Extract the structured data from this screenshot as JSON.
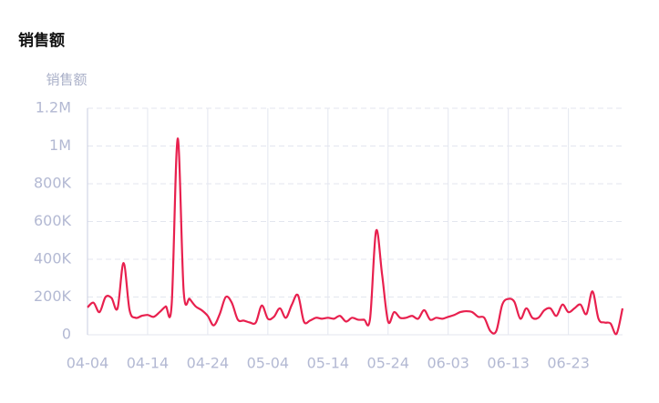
{
  "chart_data": {
    "type": "line",
    "title": "销售额",
    "y_label": "销售额",
    "categories": [
      "04-04",
      null,
      null,
      null,
      null,
      null,
      null,
      null,
      null,
      null,
      "04-14",
      null,
      null,
      null,
      null,
      null,
      null,
      null,
      null,
      null,
      "04-24",
      null,
      null,
      null,
      null,
      null,
      null,
      null,
      null,
      null,
      "05-04",
      null,
      null,
      null,
      null,
      null,
      null,
      null,
      null,
      null,
      "05-14",
      null,
      null,
      null,
      null,
      null,
      null,
      null,
      null,
      null,
      "05-24",
      null,
      null,
      null,
      null,
      null,
      null,
      null,
      null,
      null,
      "06-03",
      null,
      null,
      null,
      null,
      null,
      null,
      null,
      null,
      null,
      "06-13",
      null,
      null,
      null,
      null,
      null,
      null,
      null,
      null,
      null,
      "06-23",
      null,
      null,
      null,
      null,
      null,
      null,
      null,
      null,
      null
    ],
    "series": [
      {
        "name": "销售额",
        "color": "#e8204e",
        "values": [
          145000,
          170000,
          120000,
          200000,
          195000,
          140000,
          380000,
          130000,
          90000,
          100000,
          105000,
          95000,
          120000,
          150000,
          160000,
          1040000,
          230000,
          190000,
          150000,
          130000,
          100000,
          50000,
          110000,
          200000,
          170000,
          80000,
          75000,
          65000,
          65000,
          155000,
          85000,
          95000,
          140000,
          90000,
          160000,
          210000,
          70000,
          75000,
          90000,
          85000,
          90000,
          85000,
          100000,
          70000,
          90000,
          80000,
          80000,
          85000,
          550000,
          320000,
          70000,
          120000,
          90000,
          90000,
          100000,
          85000,
          130000,
          80000,
          90000,
          85000,
          95000,
          105000,
          120000,
          125000,
          120000,
          95000,
          90000,
          20000,
          20000,
          160000,
          190000,
          175000,
          85000,
          140000,
          90000,
          90000,
          130000,
          140000,
          100000,
          160000,
          120000,
          140000,
          160000,
          110000,
          230000,
          85000,
          65000,
          60000,
          5000,
          140000
        ]
      }
    ],
    "ylim": [
      0,
      1200000
    ],
    "yticks": [
      0,
      {
        "value": 200000,
        "label": "200K"
      },
      {
        "value": 400000,
        "label": "400K"
      },
      {
        "value": 600000,
        "label": "600K"
      },
      {
        "value": 800000,
        "label": "800K"
      },
      {
        "value": 1000000,
        "label": "1M"
      },
      {
        "value": 1200000,
        "label": "1.2M"
      }
    ],
    "grid": true
  }
}
